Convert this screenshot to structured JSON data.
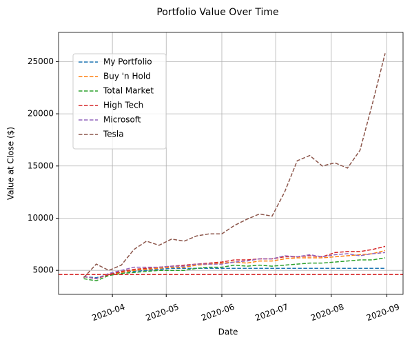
{
  "chart_data": {
    "type": "line",
    "title": "Portfolio Value Over Time",
    "x_label": "Date",
    "y_label": "Value at Close ($)",
    "x": [
      "2020-03-16",
      "2020-03-23",
      "2020-03-30",
      "2020-04-06",
      "2020-04-13",
      "2020-04-20",
      "2020-04-27",
      "2020-05-04",
      "2020-05-11",
      "2020-05-18",
      "2020-05-25",
      "2020-06-01",
      "2020-06-08",
      "2020-06-15",
      "2020-06-22",
      "2020-06-29",
      "2020-07-06",
      "2020-07-13",
      "2020-07-20",
      "2020-07-27",
      "2020-08-03",
      "2020-08-10",
      "2020-08-17",
      "2020-08-24",
      "2020-08-31"
    ],
    "series": [
      {
        "name": "My Portfolio",
        "color": "#1f77b4",
        "values": [
          4400,
          4300,
          4600,
          4800,
          4900,
          5000,
          5100,
          5200,
          5200,
          5200,
          5200,
          5200,
          5200,
          5200,
          5200,
          5200,
          5200,
          5200,
          5200,
          5200,
          5200,
          5200,
          5200,
          5200,
          5200
        ]
      },
      {
        "name": "Buy 'n Hold",
        "color": "#ff7f0e",
        "values": [
          4400,
          4200,
          4600,
          4800,
          5000,
          5100,
          5200,
          5300,
          5300,
          5500,
          5600,
          5700,
          5800,
          5700,
          5900,
          5900,
          6100,
          6200,
          6200,
          6200,
          6300,
          6400,
          6500,
          6600,
          6900
        ]
      },
      {
        "name": "Total Market",
        "color": "#2ca02c",
        "values": [
          4200,
          4000,
          4500,
          4700,
          4800,
          4900,
          5000,
          5000,
          5000,
          5200,
          5300,
          5300,
          5500,
          5400,
          5500,
          5400,
          5500,
          5600,
          5700,
          5700,
          5800,
          5900,
          6000,
          6000,
          6200
        ]
      },
      {
        "name": "High Tech",
        "color": "#d62728",
        "values": [
          4400,
          4200,
          4600,
          4900,
          5100,
          5200,
          5300,
          5400,
          5500,
          5600,
          5700,
          5800,
          6000,
          6000,
          6100,
          6100,
          6300,
          6300,
          6400,
          6300,
          6700,
          6800,
          6800,
          7000,
          7300
        ]
      },
      {
        "name": "Microsoft",
        "color": "#9467bd",
        "values": [
          4400,
          4200,
          4700,
          5000,
          5300,
          5300,
          5300,
          5400,
          5400,
          5600,
          5600,
          5600,
          5800,
          5900,
          6100,
          6100,
          6400,
          6300,
          6500,
          6300,
          6500,
          6600,
          6400,
          6600,
          6700
        ]
      },
      {
        "name": "Tesla",
        "color": "#8c564b",
        "values": [
          4300,
          5600,
          5000,
          5500,
          7000,
          7800,
          7400,
          8000,
          7800,
          8300,
          8500,
          8500,
          9300,
          9900,
          10400,
          10200,
          12500,
          15500,
          16000,
          15000,
          15300,
          14800,
          16500,
          21000,
          25800
        ]
      }
    ],
    "hline": 4600,
    "hline_color": "#d62728",
    "xlim": [
      "2020-03-02",
      "2020-09-10"
    ],
    "xticks": [
      {
        "value": "2020-04-01",
        "label": "2020-04"
      },
      {
        "value": "2020-05-01",
        "label": "2020-05"
      },
      {
        "value": "2020-06-01",
        "label": "2020-06"
      },
      {
        "value": "2020-07-01",
        "label": "2020-07"
      },
      {
        "value": "2020-08-01",
        "label": "2020-08"
      },
      {
        "value": "2020-09-01",
        "label": "2020-09"
      }
    ],
    "ylim": [
      2700,
      27800
    ],
    "yticks": [
      5000,
      10000,
      15000,
      20000,
      25000
    ],
    "grid": true,
    "legend": "upper left"
  }
}
